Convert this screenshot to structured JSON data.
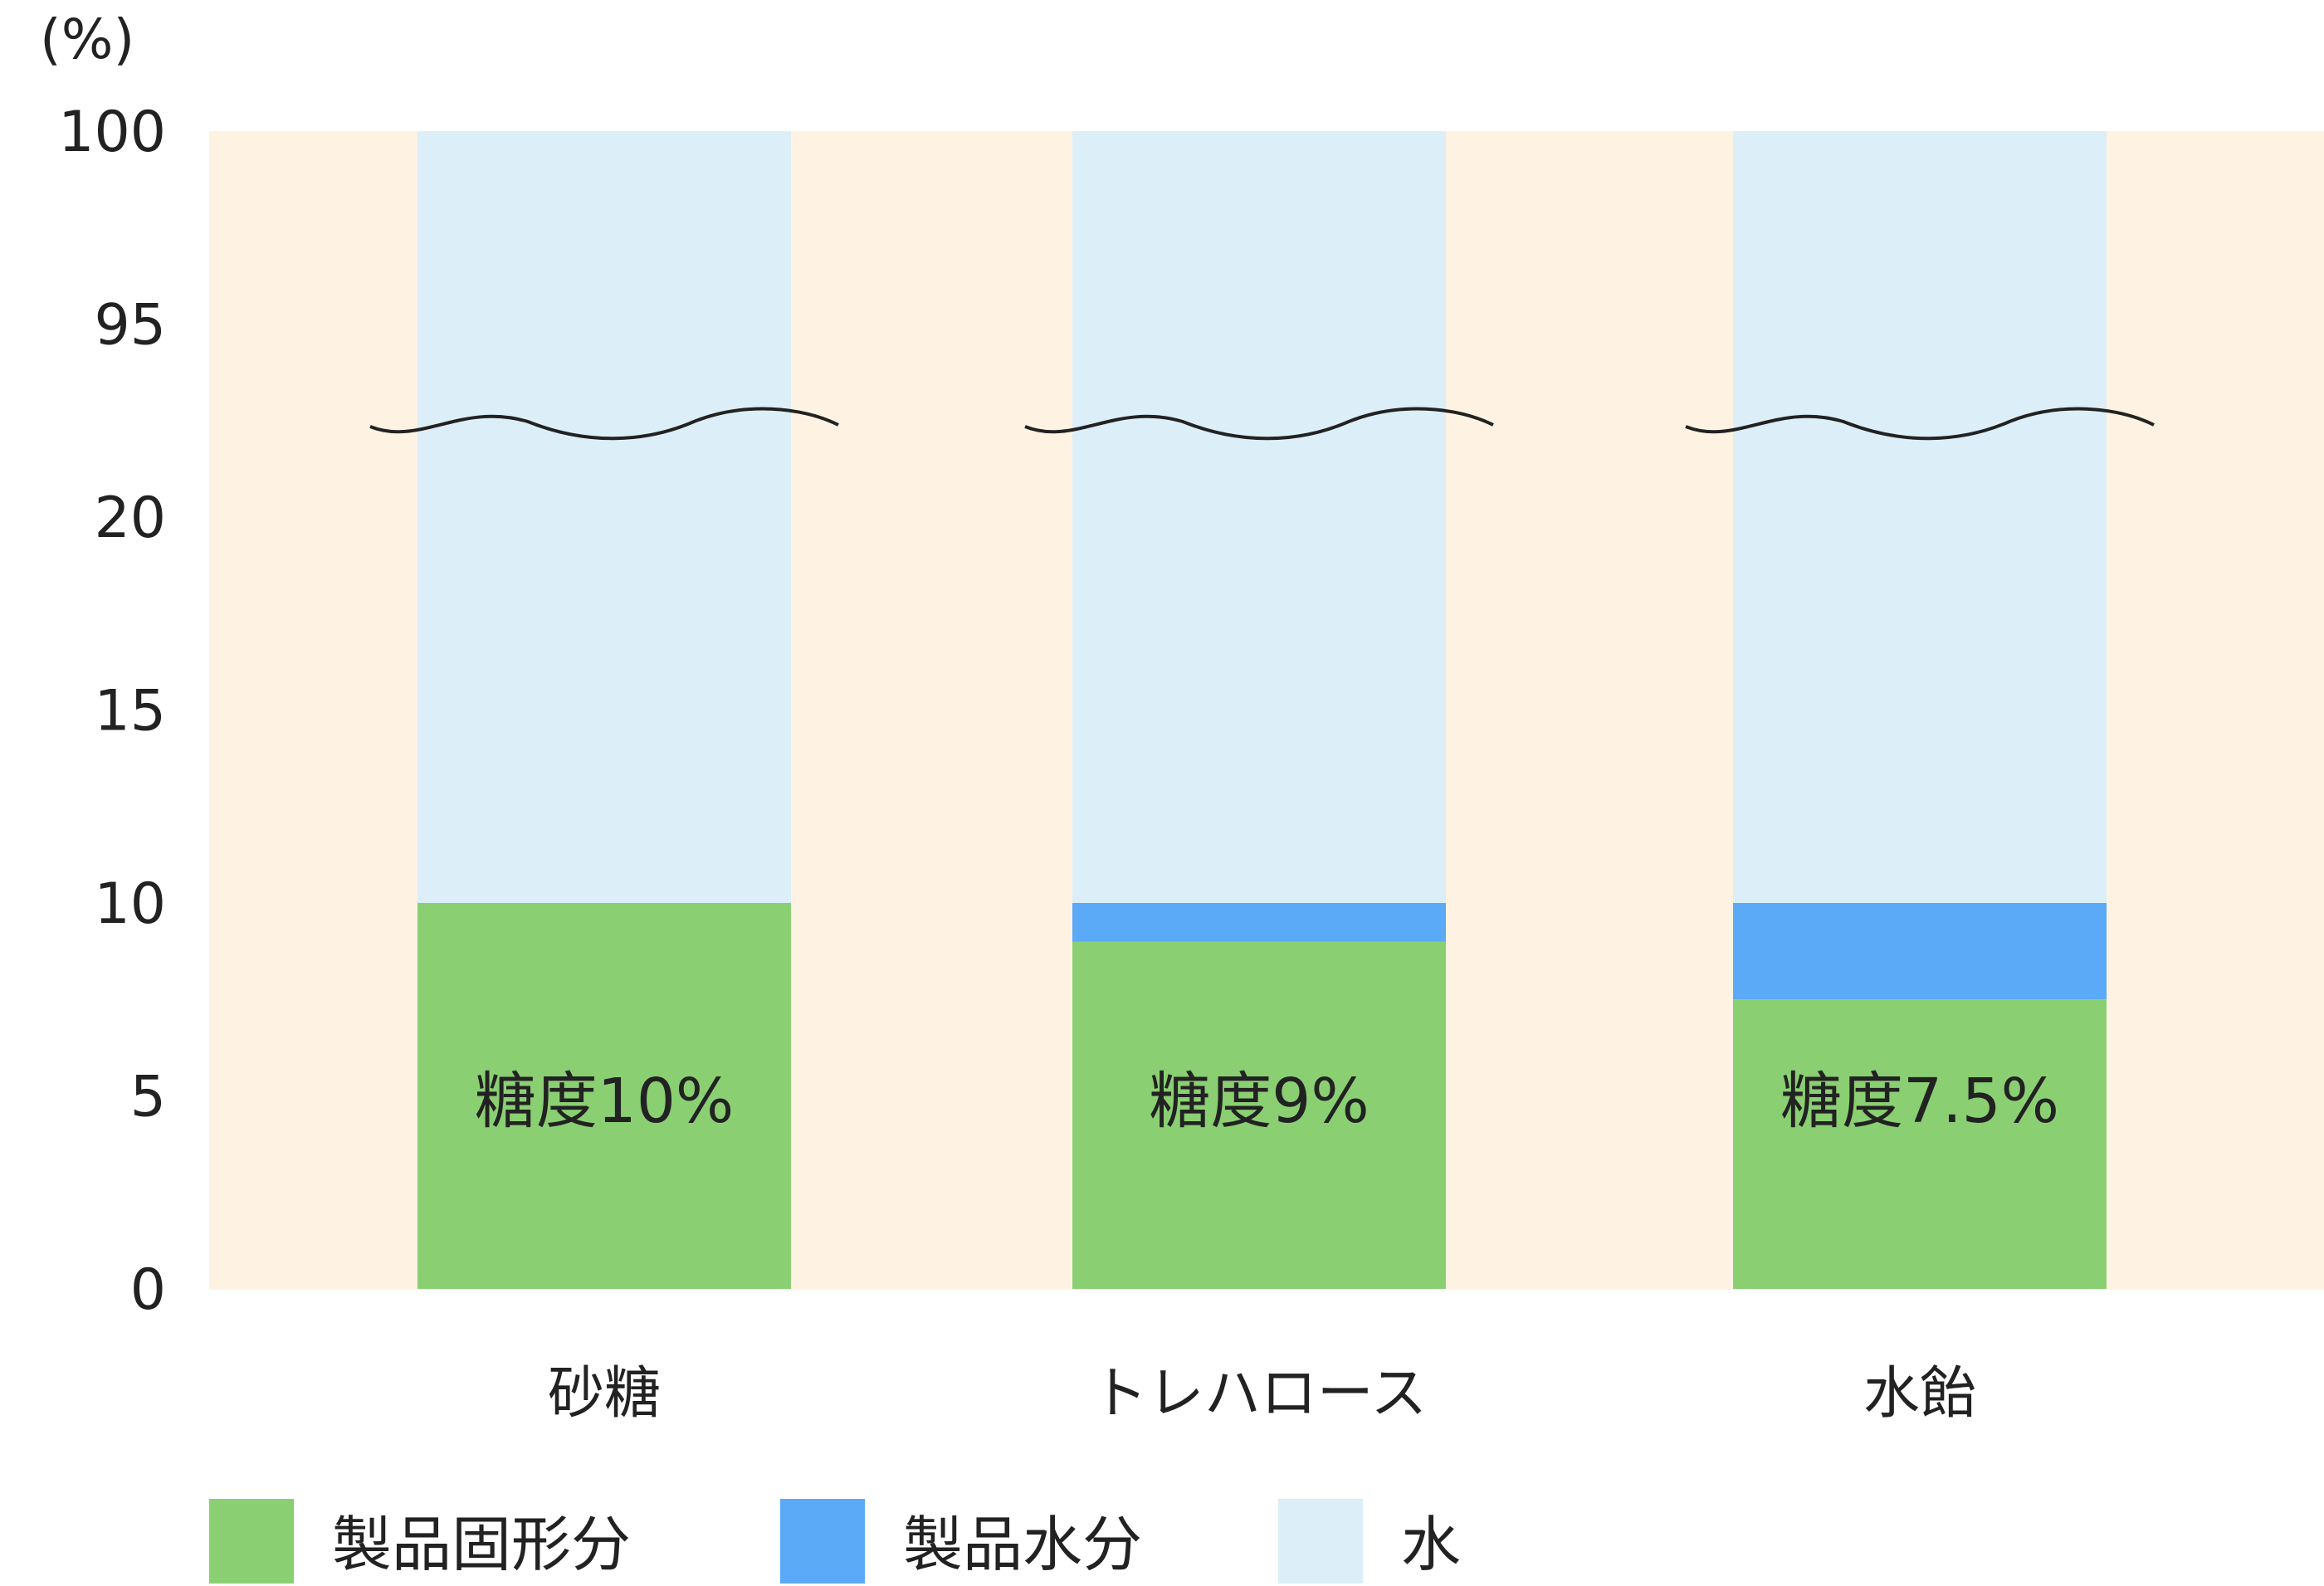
{
  "chart_data": {
    "type": "bar",
    "stacked": true,
    "unit_label": "(%)",
    "y_ticks": [
      "0",
      "5",
      "10",
      "15",
      "20",
      "95",
      "100"
    ],
    "axis_break": {
      "from": 22.5,
      "to": 92.5
    },
    "categories": [
      "砂糖",
      "トレハロース",
      "水飴"
    ],
    "series": [
      {
        "name": "製品固形分",
        "color": "#8bcf73",
        "values": [
          10,
          9,
          7.5
        ]
      },
      {
        "name": "製品水分",
        "color": "#5aaaf8",
        "values": [
          0,
          1,
          2.5
        ]
      },
      {
        "name": "水",
        "color": "#dceef8",
        "values": [
          90,
          90,
          90
        ]
      }
    ],
    "data_labels": [
      "糖度10%",
      "糖度9%",
      "糖度7.5%"
    ],
    "plot_background": "#fef3e2",
    "ylim": [
      0,
      100
    ]
  }
}
